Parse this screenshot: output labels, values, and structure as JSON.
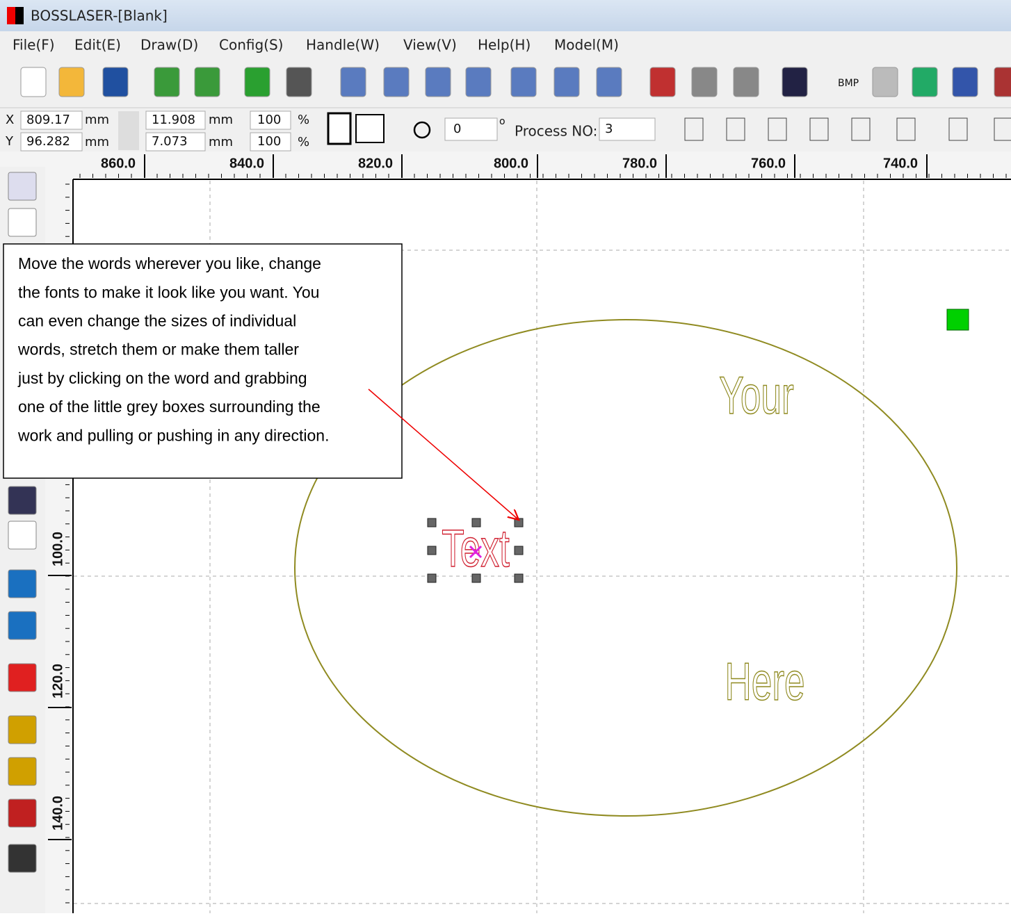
{
  "window": {
    "title": "BOSSLASER-[Blank]"
  },
  "menu": [
    "File(F)",
    "Edit(E)",
    "Draw(D)",
    "Config(S)",
    "Handle(W)",
    "View(V)",
    "Help(H)",
    "Model(M)"
  ],
  "toolbar": {
    "bmp": "BMP"
  },
  "properties": {
    "x_label": "X",
    "x": "809.17",
    "x_unit": "mm",
    "y_label": "Y",
    "y": "96.282",
    "y_unit": "mm",
    "width": "11.908",
    "width_unit": "mm",
    "height": "7.073",
    "height_unit": "mm",
    "scale_x": "100",
    "scale_x_unit": "%",
    "scale_y": "100",
    "scale_y_unit": "%",
    "rotation": "0",
    "rotation_unit": "o",
    "process_label": "Process NO:",
    "process": "3"
  },
  "ruler": {
    "horizontal": [
      "860.0",
      "840.0",
      "820.0",
      "800.0",
      "780.0",
      "760.0",
      "740.0"
    ],
    "vertical": [
      "100.0",
      "120.0",
      "140.0"
    ]
  },
  "callout": {
    "lines": [
      "Move the words wherever you like, change",
      "the fonts to make it look like you want.  You",
      "can even change the sizes of individual",
      "words, stretch them or make them taller",
      "just by clicking on the word and grabbing",
      "one of the little grey boxes surrounding the",
      "work and pulling or pushing in any direction."
    ]
  },
  "canvas": {
    "words": [
      "Your",
      "Here",
      "Text"
    ]
  }
}
